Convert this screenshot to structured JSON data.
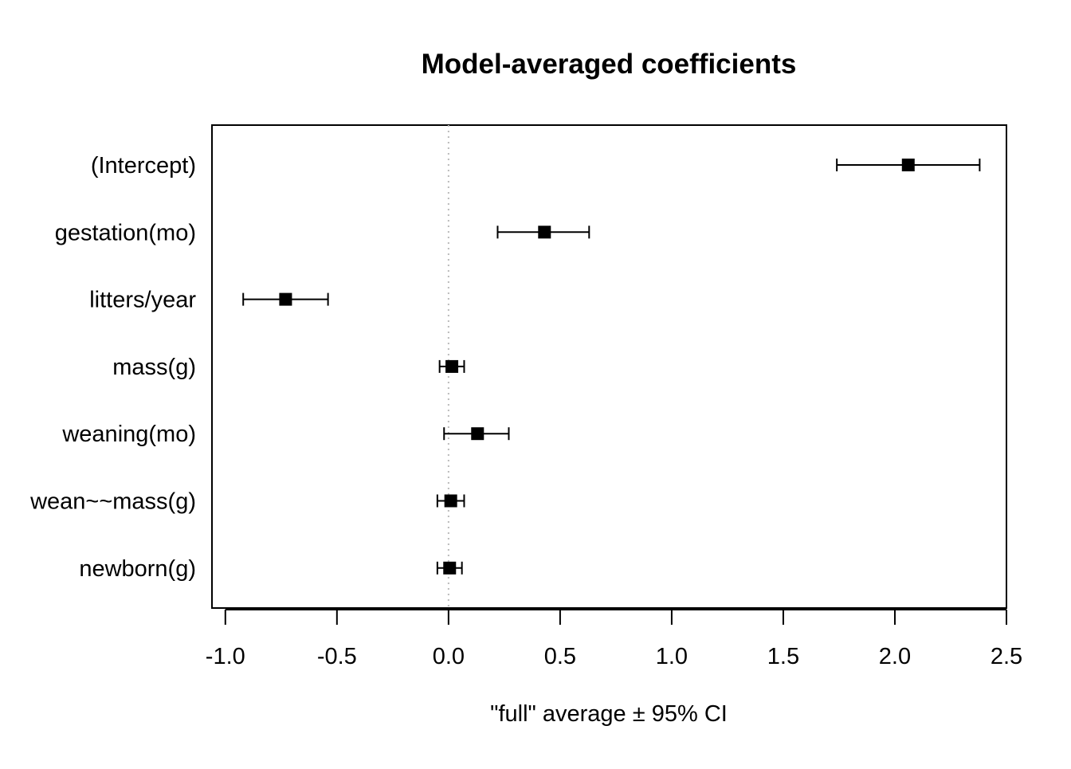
{
  "chart_data": {
    "type": "scatter",
    "subtype": "coefficient-plot-with-error-bars",
    "title": "Model-averaged coefficients",
    "xlabel": "\"full\" average ± 95% CI",
    "ylabel": "",
    "xlim": [
      -1.06,
      2.5
    ],
    "x_ticks": [
      -1.0,
      -0.5,
      0.0,
      0.5,
      1.0,
      1.5,
      2.0,
      2.5
    ],
    "x_tick_labels": [
      "-1.0",
      "-0.5",
      "0.0",
      "0.5",
      "1.0",
      "1.5",
      "2.0",
      "2.5"
    ],
    "reference_line": {
      "x": 0,
      "style": "dotted",
      "color": "#bbbbbb"
    },
    "point_color": "#000000",
    "marker": "square",
    "grid": false,
    "categories": [
      "(Intercept)",
      "gestation(mo)",
      "litters/year",
      "mass(g)",
      "weaning(mo)",
      "wean~~mass(g)",
      "newborn(g)"
    ],
    "estimates": [
      2.06,
      0.43,
      -0.73,
      0.015,
      0.13,
      0.01,
      0.005
    ],
    "ci_lower": [
      1.74,
      0.22,
      -0.92,
      -0.04,
      -0.02,
      -0.05,
      -0.05
    ],
    "ci_upper": [
      2.38,
      0.63,
      -0.54,
      0.07,
      0.27,
      0.07,
      0.06
    ]
  }
}
